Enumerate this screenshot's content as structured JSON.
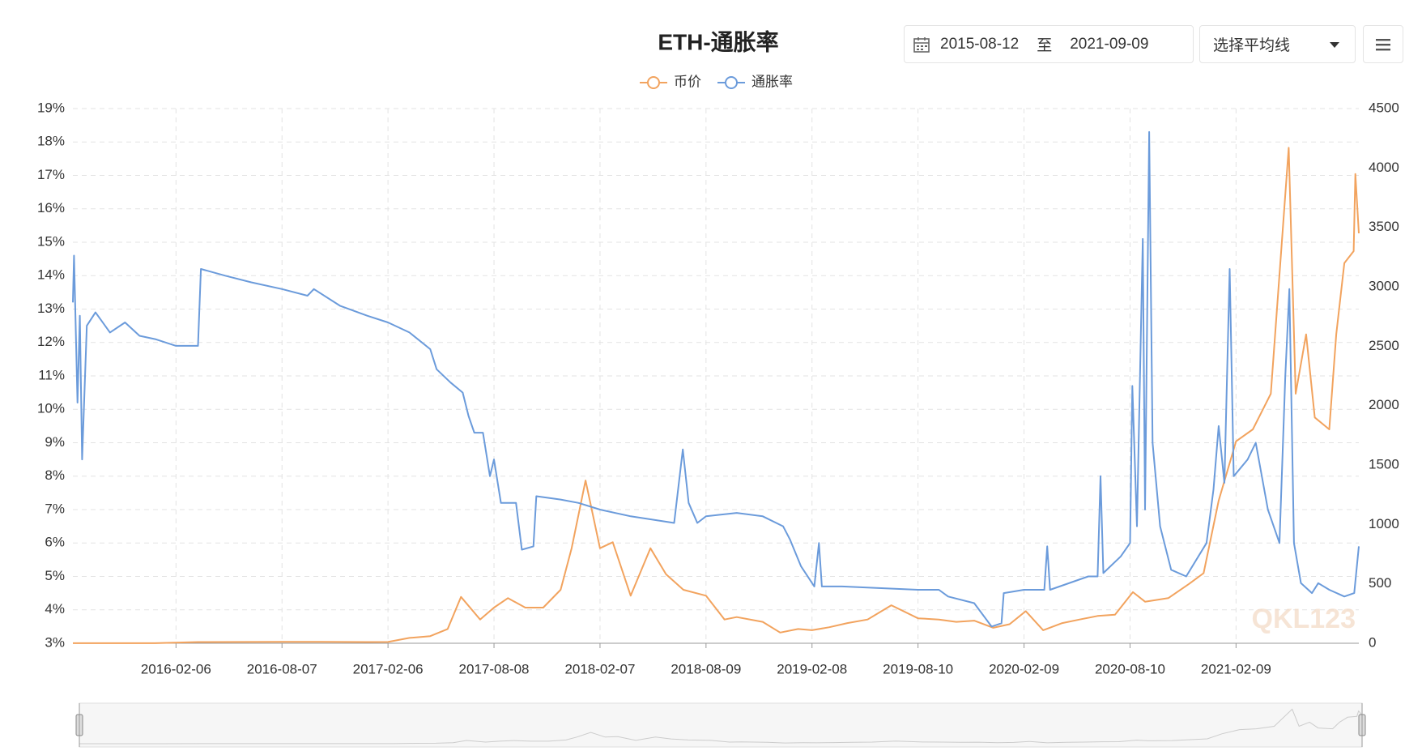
{
  "chart_data": {
    "type": "line",
    "title": "ETH-通胀率",
    "xlim": [
      "2015-08-12",
      "2021-09-09"
    ],
    "xticks": [
      "2016-02-06",
      "2016-08-07",
      "2017-02-06",
      "2017-08-08",
      "2018-02-07",
      "2018-08-09",
      "2019-02-08",
      "2019-08-10",
      "2020-02-09",
      "2020-08-10",
      "2021-02-09"
    ],
    "ylim": [
      3,
      19
    ],
    "yticks": [
      {
        "value": 3,
        "label": "3%"
      },
      {
        "value": 4,
        "label": "4%"
      },
      {
        "value": 5,
        "label": "5%"
      },
      {
        "value": 6,
        "label": "6%"
      },
      {
        "value": 7,
        "label": "7%"
      },
      {
        "value": 8,
        "label": "8%"
      },
      {
        "value": 9,
        "label": "9%"
      },
      {
        "value": 10,
        "label": "10%"
      },
      {
        "value": 11,
        "label": "11%"
      },
      {
        "value": 12,
        "label": "12%"
      },
      {
        "value": 13,
        "label": "13%"
      },
      {
        "value": 14,
        "label": "14%"
      },
      {
        "value": 15,
        "label": "15%"
      },
      {
        "value": 16,
        "label": "16%"
      },
      {
        "value": 17,
        "label": "17%"
      },
      {
        "value": 18,
        "label": "18%"
      },
      {
        "value": 19,
        "label": "19%"
      }
    ],
    "y2lim": [
      0,
      4500
    ],
    "y2ticks": [
      0,
      500,
      1000,
      1500,
      2000,
      2500,
      3000,
      3500,
      4000,
      4500
    ],
    "grid": true,
    "legend": "top",
    "watermark": "QKL123",
    "series": [
      {
        "name": "币价",
        "color": "#f2a35e",
        "axis": "y2",
        "x": [
          "2015-08-12",
          "2016-01-01",
          "2016-03-15",
          "2016-08-07",
          "2016-10-15",
          "2017-01-01",
          "2017-02-06",
          "2017-03-15",
          "2017-04-20",
          "2017-05-20",
          "2017-06-12",
          "2017-07-15",
          "2017-08-08",
          "2017-09-01",
          "2017-10-01",
          "2017-11-01",
          "2017-12-01",
          "2017-12-20",
          "2018-01-13",
          "2018-02-07",
          "2018-03-01",
          "2018-04-01",
          "2018-05-05",
          "2018-06-01",
          "2018-07-01",
          "2018-08-09",
          "2018-09-10",
          "2018-10-01",
          "2018-11-15",
          "2018-12-15",
          "2019-01-15",
          "2019-02-08",
          "2019-03-10",
          "2019-04-10",
          "2019-05-15",
          "2019-06-25",
          "2019-08-10",
          "2019-09-15",
          "2019-10-15",
          "2019-11-15",
          "2019-12-18",
          "2020-01-15",
          "2020-02-12",
          "2020-03-13",
          "2020-04-15",
          "2020-05-15",
          "2020-06-15",
          "2020-07-15",
          "2020-08-15",
          "2020-09-05",
          "2020-10-15",
          "2020-11-20",
          "2020-12-15",
          "2021-01-10",
          "2021-02-09",
          "2021-03-10",
          "2021-04-10",
          "2021-05-11",
          "2021-05-23",
          "2021-06-10",
          "2021-06-25",
          "2021-07-20",
          "2021-08-01",
          "2021-08-15",
          "2021-08-31",
          "2021-09-03",
          "2021-09-09"
        ],
        "values": [
          1,
          1,
          10,
          12,
          12,
          10,
          11,
          45,
          60,
          120,
          390,
          200,
          300,
          380,
          300,
          300,
          450,
          800,
          1370,
          800,
          850,
          400,
          800,
          580,
          450,
          400,
          200,
          220,
          180,
          90,
          120,
          110,
          135,
          170,
          200,
          320,
          210,
          200,
          180,
          190,
          130,
          160,
          270,
          110,
          170,
          200,
          230,
          240,
          430,
          350,
          380,
          500,
          590,
          1200,
          1700,
          1800,
          2100,
          4170,
          2100,
          2600,
          1900,
          1800,
          2600,
          3200,
          3300,
          3950,
          3450
        ]
      },
      {
        "name": "通胀率",
        "color": "#6b9bdb",
        "axis": "y",
        "x": [
          "2015-08-12",
          "2015-08-14",
          "2015-08-20",
          "2015-08-24",
          "2015-08-28",
          "2015-09-05",
          "2015-09-20",
          "2015-10-15",
          "2015-11-10",
          "2015-12-05",
          "2016-01-01",
          "2016-02-06",
          "2016-03-15",
          "2016-03-20",
          "2016-05-01",
          "2016-06-15",
          "2016-08-07",
          "2016-09-20",
          "2016-10-01",
          "2016-11-15",
          "2017-01-01",
          "2017-02-06",
          "2017-03-15",
          "2017-04-20",
          "2017-05-01",
          "2017-05-25",
          "2017-06-15",
          "2017-06-25",
          "2017-07-05",
          "2017-07-20",
          "2017-08-01",
          "2017-08-08",
          "2017-08-20",
          "2017-09-15",
          "2017-09-25",
          "2017-10-15",
          "2017-10-20",
          "2017-12-01",
          "2018-01-01",
          "2018-02-07",
          "2018-04-01",
          "2018-06-15",
          "2018-06-30",
          "2018-07-10",
          "2018-07-25",
          "2018-08-09",
          "2018-10-01",
          "2018-11-15",
          "2018-12-20",
          "2019-01-01",
          "2019-01-20",
          "2019-02-12",
          "2019-02-20",
          "2019-02-25",
          "2019-04-01",
          "2019-08-10",
          "2019-09-15",
          "2019-10-01",
          "2019-11-15",
          "2019-12-15",
          "2020-01-01",
          "2020-01-05",
          "2020-02-09",
          "2020-03-15",
          "2020-03-20",
          "2020-03-25",
          "2020-05-30",
          "2020-06-15",
          "2020-06-20",
          "2020-06-25",
          "2020-07-25",
          "2020-08-10",
          "2020-08-14",
          "2020-08-22",
          "2020-09-01",
          "2020-09-05",
          "2020-09-12",
          "2020-09-18",
          "2020-10-01",
          "2020-10-20",
          "2020-11-15",
          "2020-12-20",
          "2021-01-01",
          "2021-01-10",
          "2021-01-20",
          "2021-01-29",
          "2021-02-05",
          "2021-03-01",
          "2021-03-15",
          "2021-04-05",
          "2021-04-25",
          "2021-05-05",
          "2021-05-12",
          "2021-05-20",
          "2021-06-01",
          "2021-06-20",
          "2021-07-01",
          "2021-07-20",
          "2021-08-15",
          "2021-09-01",
          "2021-09-09"
        ],
        "values": [
          13.2,
          14.6,
          10.2,
          12.8,
          8.5,
          12.5,
          12.9,
          12.3,
          12.6,
          12.2,
          12.1,
          11.9,
          11.9,
          14.2,
          14.0,
          13.8,
          13.6,
          13.4,
          13.6,
          13.1,
          12.8,
          12.6,
          12.3,
          11.8,
          11.2,
          10.8,
          10.5,
          9.8,
          9.3,
          9.3,
          8.0,
          8.5,
          7.2,
          7.2,
          5.8,
          5.9,
          7.4,
          7.3,
          7.2,
          7.0,
          6.8,
          6.6,
          8.8,
          7.2,
          6.6,
          6.8,
          6.9,
          6.8,
          6.5,
          6.1,
          5.3,
          4.7,
          6.0,
          4.7,
          4.7,
          4.6,
          4.6,
          4.4,
          4.2,
          3.5,
          3.6,
          4.5,
          4.6,
          4.6,
          5.9,
          4.6,
          5.0,
          5.0,
          8.0,
          5.1,
          5.6,
          6.0,
          10.7,
          6.5,
          15.1,
          7.0,
          18.3,
          9.0,
          6.5,
          5.2,
          5.0,
          6.0,
          7.6,
          9.5,
          7.8,
          14.2,
          8.0,
          8.5,
          9.0,
          7.0,
          6.0,
          11.0,
          13.6,
          6.0,
          4.8,
          4.5,
          4.8,
          4.6,
          4.4,
          4.5,
          5.9
        ]
      }
    ]
  },
  "controls": {
    "date_from": "2015-08-12",
    "date_separator": "至",
    "date_to": "2021-09-09",
    "average_select": "选择平均线"
  }
}
